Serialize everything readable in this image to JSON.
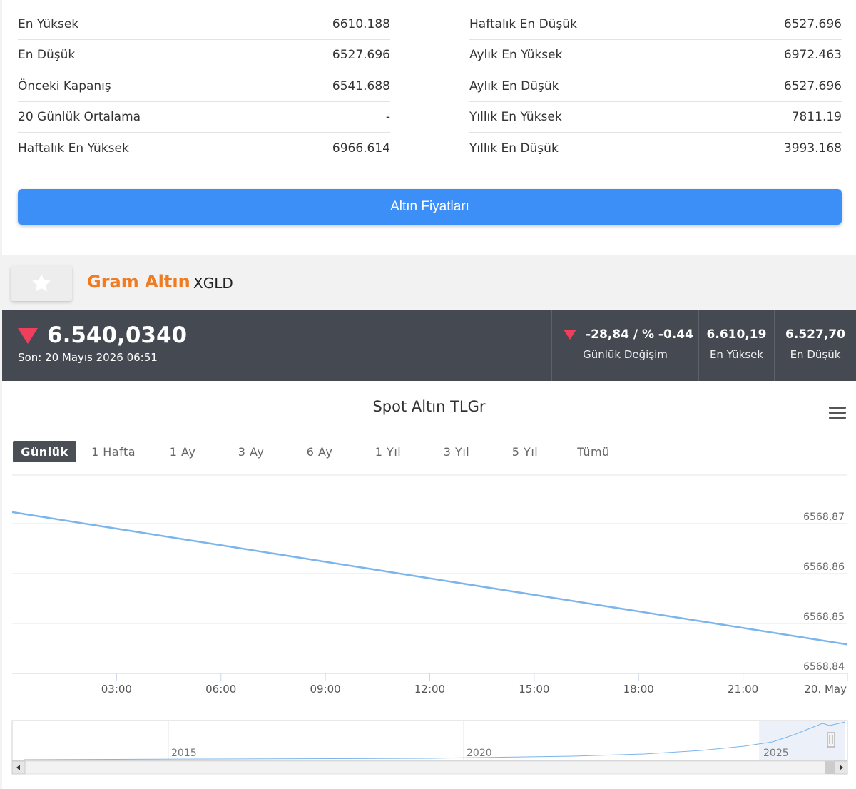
{
  "stats": {
    "left": [
      {
        "label": "En Yüksek",
        "value": "6610.188"
      },
      {
        "label": "En Düşük",
        "value": "6527.696"
      },
      {
        "label": "Önceki Kapanış",
        "value": "6541.688"
      },
      {
        "label": "20 Günlük Ortalama",
        "value": "-"
      },
      {
        "label": "Haftalık En Yüksek",
        "value": "6966.614"
      }
    ],
    "right": [
      {
        "label": "Haftalık En Düşük",
        "value": "6527.696"
      },
      {
        "label": "Aylık En Yüksek",
        "value": "6972.463"
      },
      {
        "label": "Aylık En Düşük",
        "value": "6527.696"
      },
      {
        "label": "Yıllık En Yüksek",
        "value": "7811.19"
      },
      {
        "label": "Yıllık En Düşük",
        "value": "3993.168"
      }
    ]
  },
  "gold_prices_button": "Altın Fiyatları",
  "asset": {
    "name": "Gram Altın",
    "code": "XGLD"
  },
  "price": {
    "current": "6.540,0340",
    "last_update": "Son: 20 Mayıs 2026 06:51",
    "change": "-28,84 / % -0.44",
    "change_label": "Günlük Değişim",
    "high": "6.610,19",
    "high_label": "En Yüksek",
    "low": "6.527,70",
    "low_label": "En Düşük",
    "down_color": "#ef3f5c"
  },
  "chart": {
    "title": "Spot Altın TLGr",
    "ranges": [
      "Günlük",
      "1 Hafta",
      "1 Ay",
      "3 Ay",
      "6 Ay",
      "1 Yıl",
      "3 Yıl",
      "5 Yıl",
      "Tümü"
    ],
    "active_range": "Günlük"
  },
  "chart_data": {
    "type": "line",
    "title": "Spot Altın TLGr",
    "x_ticks": [
      "03:00",
      "06:00",
      "09:00",
      "12:00",
      "15:00",
      "18:00",
      "21:00",
      "20. May"
    ],
    "y_ticks": [
      "6568,87",
      "6568,86",
      "6568,85",
      "6568,84"
    ],
    "ylim": [
      6568.84,
      6568.87
    ],
    "series": [
      {
        "values": [
          {
            "x": "00:00",
            "y": 6568.8723
          },
          {
            "x": "24:00",
            "y": 6568.8458
          }
        ]
      }
    ],
    "line_color": "#7cb5ec",
    "grid": true,
    "navigator": {
      "labels": [
        "2015",
        "2020",
        "2025"
      ]
    }
  }
}
